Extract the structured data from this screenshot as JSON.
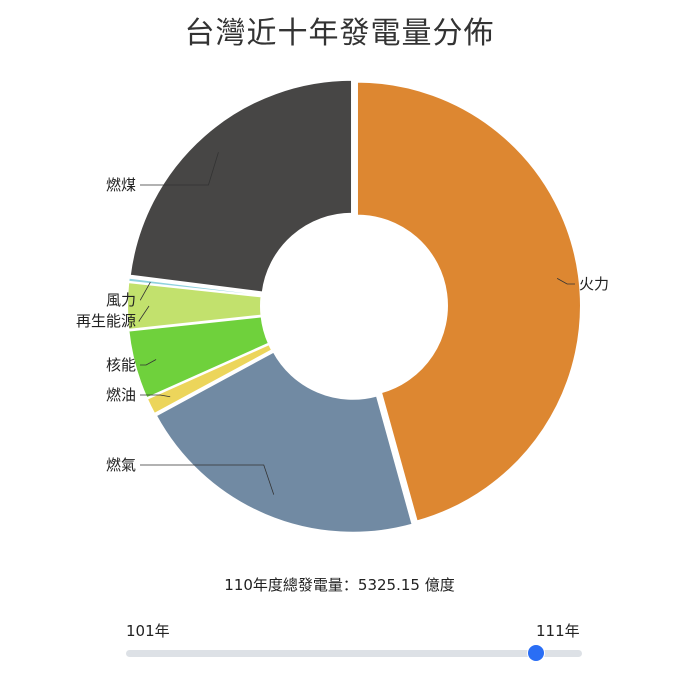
{
  "chart_data": {
    "type": "pie",
    "title": "台灣近十年發電量分佈",
    "hole": true,
    "slices": [
      {
        "label": "火力",
        "value": 45.7,
        "color": "#dd8731"
      },
      {
        "label": "燃氣",
        "value": 21.4,
        "color": "#718aa3"
      },
      {
        "label": "燃油",
        "value": 1.2,
        "color": "#ecd55b"
      },
      {
        "label": "核能",
        "value": 5.0,
        "color": "#6fd13c"
      },
      {
        "label": "再生能源",
        "value": 3.4,
        "color": "#c2e16d"
      },
      {
        "label": "風力",
        "value": 0.3,
        "color": "#8fd2de"
      },
      {
        "label": "燃煤",
        "value": 23.0,
        "color": "#474645"
      }
    ]
  },
  "summary": {
    "total_text": "110年度總發電量：5325.15 億度"
  },
  "slider": {
    "min_label": "101年",
    "max_label": "111年",
    "min": 101,
    "max": 111,
    "value": 110,
    "accent": "#2a6ef5"
  }
}
